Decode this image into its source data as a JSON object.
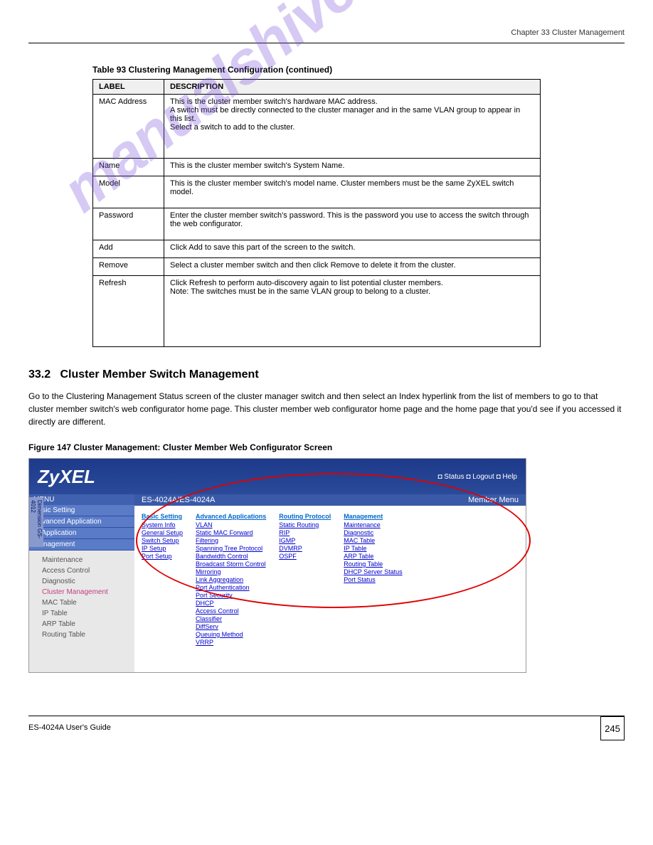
{
  "chapter_header": "Chapter 33 Cluster Management",
  "watermark": "manualshive.com",
  "table": {
    "caption": "Table 93   Clustering Management Configuration (continued)",
    "header": {
      "label": "LABEL",
      "desc": "DESCRIPTION"
    },
    "rows": [
      {
        "label": "MAC Address",
        "desc": "This is the cluster member switch's hardware MAC address.\nA switch must be directly connected to the cluster manager and in the same VLAN group to appear in this list.\nSelect a switch to add to the cluster.",
        "h": "row-multi"
      },
      {
        "label": "Name",
        "desc": "This is the cluster member switch's System Name.",
        "h": "row-sm"
      },
      {
        "label": "Model",
        "desc": "This is the cluster member switch's model name. Cluster members must be the same ZyXEL switch model.",
        "h": "row-med"
      },
      {
        "label": "Password",
        "desc": "Enter the cluster member switch's password. This is the password you use to access the switch through the web configurator.",
        "h": "row-med"
      },
      {
        "label": "Add",
        "desc": "Click Add to save this part of the screen to the switch.",
        "h": "row-sm"
      },
      {
        "label": "Remove",
        "desc": "Select a cluster member switch and then click Remove to delete it from the cluster.",
        "h": "row-sm"
      },
      {
        "label": "Refresh",
        "desc": "Click Refresh to perform auto-discovery again to list potential cluster members.\nNote: The switches must be in the same VLAN group to belong to a cluster.",
        "h": "row-big"
      }
    ]
  },
  "section": {
    "number": "33.2",
    "title": "Cluster Member Switch Management",
    "para1": "Go to the Clustering Management Status screen of the cluster manager switch and then select an Index hyperlink from the list of members to go to that cluster member switch's web configurator home page. This cluster member web configurator home page and the home page that you'd see if you accessed it directly are different."
  },
  "figure": {
    "caption": "Figure 147   Cluster Management: Cluster Member Web Configurator Screen",
    "logo": "ZyXEL",
    "top_links": "◘ Status ◘ Logout ◘ Help",
    "menu_label": "MENU",
    "titlebar_left": "ES-4024A/ES-4024A",
    "titlebar_right": "Member Menu",
    "dim_tab": "Dimension GS-4012",
    "sidebar_main": [
      "Basic Setting",
      "Advanced Application",
      "IP Application",
      "Management"
    ],
    "sidebar_sub": [
      "Maintenance",
      "Access Control",
      "Diagnostic",
      "Cluster Management",
      "MAC Table",
      "IP Table",
      "ARP Table",
      "Routing Table"
    ],
    "sidebar_active_index": 3,
    "cols": [
      {
        "header": "Basic Setting",
        "links": [
          "System Info",
          "General Setup",
          "Switch Setup",
          "IP Setup",
          "Port Setup"
        ]
      },
      {
        "header": "Advanced Applications",
        "links": [
          "VLAN",
          "Static MAC Forward",
          "Filtering",
          "Spanning Tree Protocol",
          "Bandwidth Control",
          "Broadcast Storm Control",
          "Mirroring",
          "Link Aggregation",
          "Port Authentication",
          "Port Security",
          "DHCP",
          "Access Control",
          "Classifier",
          "DiffServ",
          "Queuing Method",
          "VRRP"
        ]
      },
      {
        "header": "Routing Protocol",
        "links": [
          "Static Routing",
          "RIP",
          "IGMP",
          "DVMRP",
          "OSPF"
        ]
      },
      {
        "header": "Management",
        "links": [
          "Maintenance",
          "Diagnostic",
          "MAC Table",
          "IP Table",
          "ARP Table",
          "Routing Table",
          "DHCP Server Status",
          "Port Status"
        ]
      }
    ]
  },
  "footer": {
    "text": "ES-4024A User's Guide",
    "page": "245"
  }
}
